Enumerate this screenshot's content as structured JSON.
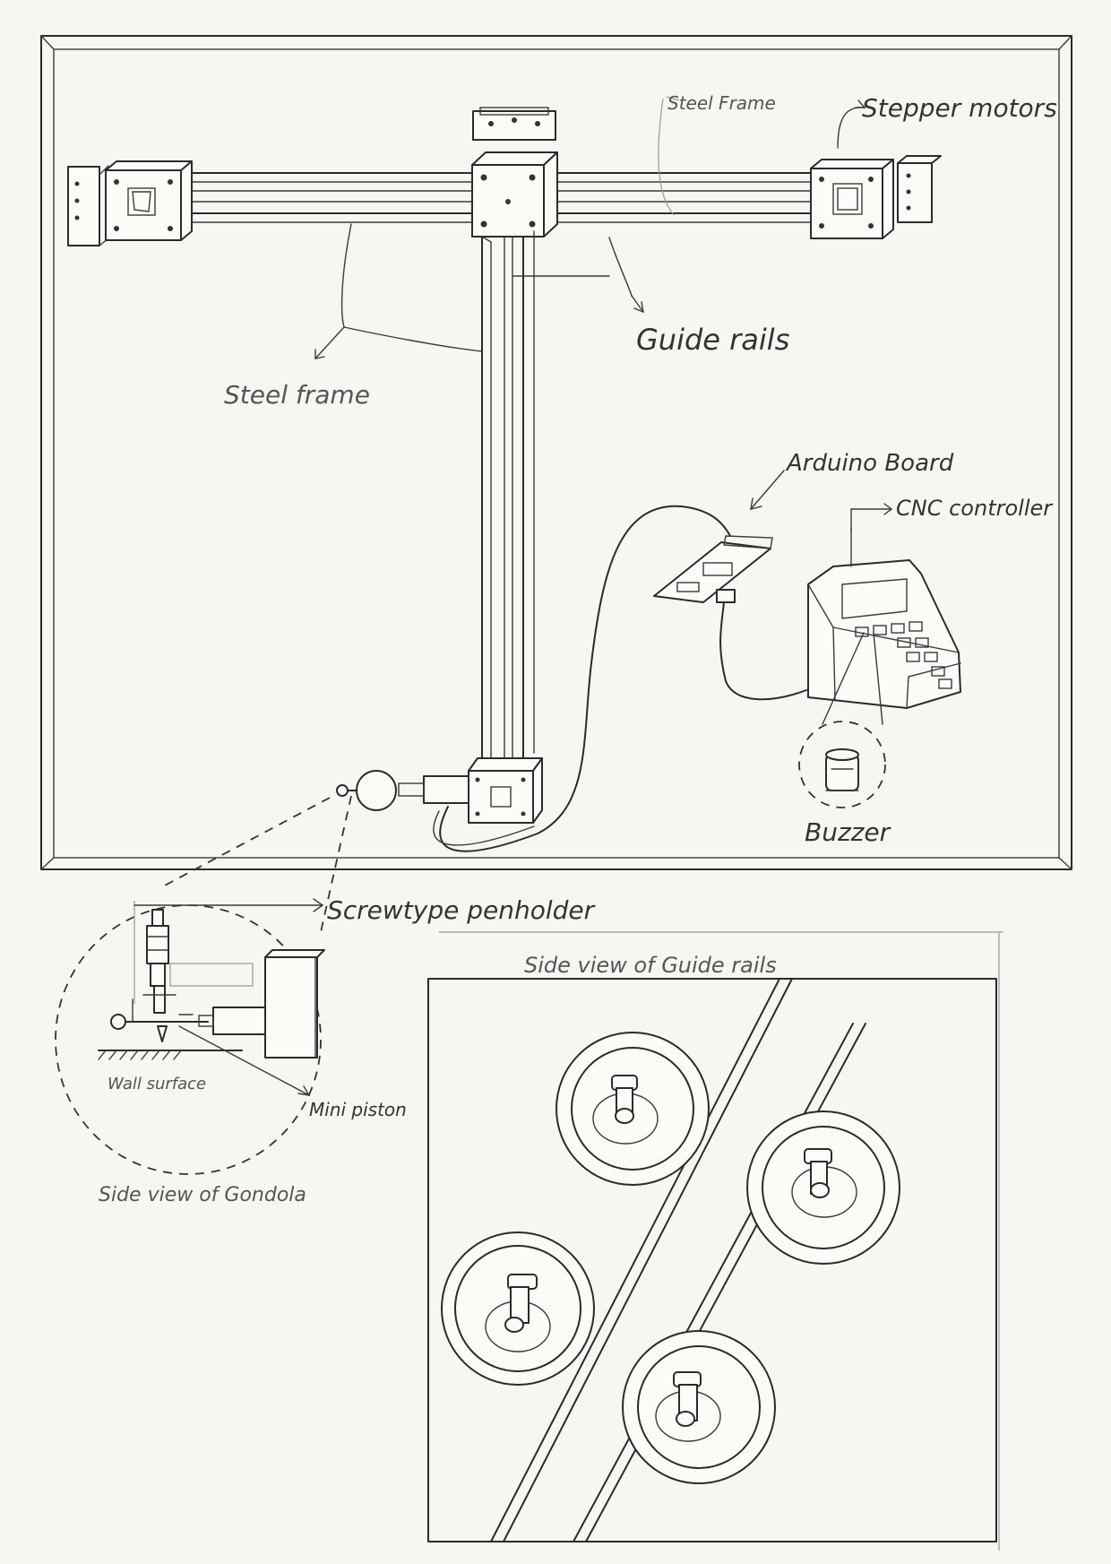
{
  "labels": {
    "steel_frame_top": "Steel Frame",
    "stepper_motors": "Stepper motors",
    "guide_rails": "Guide rails",
    "steel_frame": "Steel frame",
    "arduino_board": "Arduino Board",
    "cnc_controller": "CNC controller",
    "buzzer": "Buzzer",
    "screwtype_penholder": "Screwtype penholder",
    "wall_surface": "Wall surface",
    "mini_piston": "Mini piston",
    "side_view_gondola": "Side view of Gondola",
    "side_view_guide_rails": "Side view of Guide rails"
  }
}
